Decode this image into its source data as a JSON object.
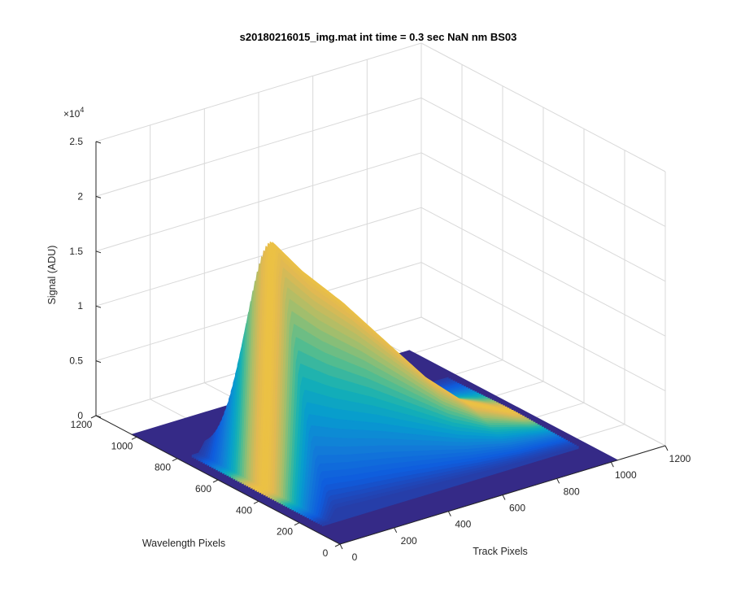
{
  "chart_data": {
    "type": "surface3d",
    "title": "s20180216015_img.mat int time = 0.3 sec  NaN nm BS03",
    "zlabel": "Signal (ADU)",
    "xlabel": "Track Pixels",
    "ylabel": "Wavelength Pixels",
    "z_exponent_label": "×10",
    "z_exponent_power": "4",
    "zlim": [
      0,
      25000
    ],
    "xlim": [
      0,
      1200
    ],
    "ylim": [
      0,
      1200
    ],
    "z_ticks": [
      "0",
      "0.5",
      "1",
      "1.5",
      "2",
      "2.5"
    ],
    "x_ticks": [
      "0",
      "200",
      "400",
      "600",
      "800",
      "1000",
      "1200"
    ],
    "y_ticks": [
      "0",
      "200",
      "400",
      "600",
      "800",
      "1000",
      "1200"
    ],
    "grid": true,
    "colormap": "parula",
    "floor_color": "#352a87",
    "surface": {
      "track_range": [
        0,
        1024
      ],
      "wavelength_range": [
        0,
        1024
      ],
      "baseline": 200,
      "peak_track": 90,
      "peak_signal": 22500,
      "profiles_ridge": [
        {
          "track": 90,
          "signal": 22500
        },
        {
          "track": 200,
          "signal": 19000
        },
        {
          "track": 350,
          "signal": 15000
        },
        {
          "track": 500,
          "signal": 10500
        },
        {
          "track": 650,
          "signal": 6000
        },
        {
          "track": 800,
          "signal": 2500
        },
        {
          "track": 950,
          "signal": 600
        }
      ]
    }
  }
}
